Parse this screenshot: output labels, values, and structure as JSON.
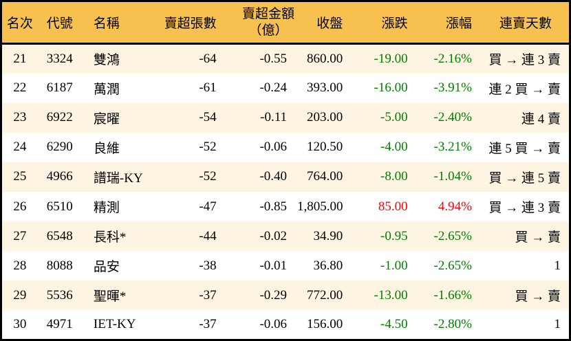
{
  "colors": {
    "header_bg": "#F6C14E",
    "row_alt_bg": "#FDF5E1",
    "row_bg": "#FFFFFF",
    "border": "#000000",
    "down_text": "#008000",
    "up_text": "#FF0000",
    "text": "#000000"
  },
  "table": {
    "headers": {
      "rank": "名次",
      "code": "代號",
      "name": "名稱",
      "sell_volume": "賣超張數",
      "sell_amount_line1": "賣超金額",
      "sell_amount_line2": "（億）",
      "close": "收盤",
      "change": "漲跌",
      "change_pct": "漲幅",
      "streak": "連賣天數"
    },
    "rows": [
      {
        "rank": "21",
        "code": "3324",
        "name": "雙鴻",
        "sell_volume": "-64",
        "sell_amount": "-0.55",
        "close": "860.00",
        "change": "-19.00",
        "change_pct": "-2.16%",
        "trend": "down",
        "streak": "買 → 連 3 賣"
      },
      {
        "rank": "22",
        "code": "6187",
        "name": "萬潤",
        "sell_volume": "-61",
        "sell_amount": "-0.24",
        "close": "393.00",
        "change": "-16.00",
        "change_pct": "-3.91%",
        "trend": "down",
        "streak": "連 2 買 → 賣"
      },
      {
        "rank": "23",
        "code": "6922",
        "name": "宸曜",
        "sell_volume": "-54",
        "sell_amount": "-0.11",
        "close": "203.00",
        "change": "-5.00",
        "change_pct": "-2.40%",
        "trend": "down",
        "streak": "連 4 賣"
      },
      {
        "rank": "24",
        "code": "6290",
        "name": "良維",
        "sell_volume": "-52",
        "sell_amount": "-0.06",
        "close": "120.50",
        "change": "-4.00",
        "change_pct": "-3.21%",
        "trend": "down",
        "streak": "連 5 買 → 賣"
      },
      {
        "rank": "25",
        "code": "4966",
        "name": "譜瑞-KY",
        "sell_volume": "-52",
        "sell_amount": "-0.40",
        "close": "764.00",
        "change": "-8.00",
        "change_pct": "-1.04%",
        "trend": "down",
        "streak": "買 → 連 5 賣"
      },
      {
        "rank": "26",
        "code": "6510",
        "name": "精測",
        "sell_volume": "-47",
        "sell_amount": "-0.85",
        "close": "1,805.00",
        "change": "85.00",
        "change_pct": "4.94%",
        "trend": "up",
        "streak": "買 → 連 3 賣"
      },
      {
        "rank": "27",
        "code": "6548",
        "name": "長科*",
        "sell_volume": "-44",
        "sell_amount": "-0.02",
        "close": "34.90",
        "change": "-0.95",
        "change_pct": "-2.65%",
        "trend": "down",
        "streak": "買 → 賣"
      },
      {
        "rank": "28",
        "code": "8088",
        "name": "品安",
        "sell_volume": "-38",
        "sell_amount": "-0.01",
        "close": "36.80",
        "change": "-1.00",
        "change_pct": "-2.65%",
        "trend": "down",
        "streak": "1"
      },
      {
        "rank": "29",
        "code": "5536",
        "name": "聖暉*",
        "sell_volume": "-37",
        "sell_amount": "-0.29",
        "close": "772.00",
        "change": "-13.00",
        "change_pct": "-1.66%",
        "trend": "down",
        "streak": "買 → 賣"
      },
      {
        "rank": "30",
        "code": "4971",
        "name": "IET-KY",
        "sell_volume": "-37",
        "sell_amount": "-0.06",
        "close": "156.00",
        "change": "-4.50",
        "change_pct": "-2.80%",
        "trend": "down",
        "streak": "1"
      }
    ]
  }
}
